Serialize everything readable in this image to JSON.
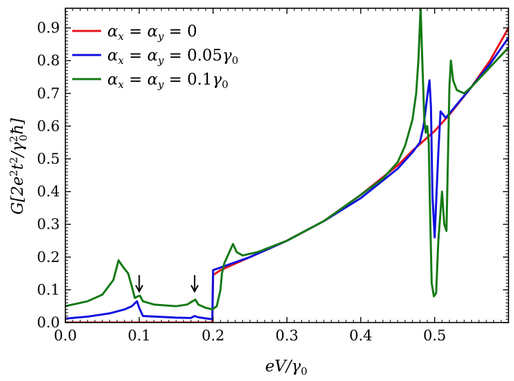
{
  "chart_data": {
    "type": "line",
    "xlabel": "eV/γ₀",
    "ylabel": "G[2e²t²/γ₀²ħ]",
    "xlim": [
      0.0,
      0.6
    ],
    "ylim": [
      0.0,
      0.96
    ],
    "x_ticks": [
      "0.0",
      "0.1",
      "0.2",
      "0.3",
      "0.4",
      "0.5"
    ],
    "x_tick_values": [
      0.0,
      0.1,
      0.2,
      0.3,
      0.4,
      0.5
    ],
    "y_ticks": [
      "0.0",
      "0.1",
      "0.2",
      "0.3",
      "0.4",
      "0.5",
      "0.6",
      "0.7",
      "0.8",
      "0.9"
    ],
    "y_tick_values": [
      0.0,
      0.1,
      0.2,
      0.3,
      0.4,
      0.5,
      0.6,
      0.7,
      0.8,
      0.9
    ],
    "grid": false,
    "legend_position": "top-left",
    "annotations": [
      {
        "type": "down-arrow",
        "x": 0.1,
        "y_from": 0.145,
        "y_to": 0.095
      },
      {
        "type": "down-arrow",
        "x": 0.175,
        "y_from": 0.145,
        "y_to": 0.095
      }
    ],
    "series": [
      {
        "name": "α_x = α_y = 0",
        "color": "#e8121c",
        "x": [
          0.0,
          0.1,
          0.199,
          0.2,
          0.21,
          0.23,
          0.25,
          0.3,
          0.35,
          0.4,
          0.45,
          0.47,
          0.5,
          0.52,
          0.55,
          0.575,
          0.6
        ],
        "y": [
          0.0,
          0.0,
          0.0,
          0.145,
          0.16,
          0.18,
          0.2,
          0.25,
          0.31,
          0.39,
          0.48,
          0.525,
          0.585,
          0.635,
          0.72,
          0.8,
          0.9
        ]
      },
      {
        "name": "α_x = α_y = 0.05γ₀",
        "color": "#1010e0",
        "x": [
          0.0,
          0.03,
          0.06,
          0.08,
          0.09,
          0.097,
          0.1,
          0.105,
          0.15,
          0.17,
          0.175,
          0.18,
          0.199,
          0.2,
          0.21,
          0.25,
          0.3,
          0.35,
          0.4,
          0.45,
          0.47,
          0.48,
          0.485,
          0.49,
          0.493,
          0.495,
          0.497,
          0.5,
          0.505,
          0.508,
          0.515,
          0.55,
          0.575,
          0.6
        ],
        "y": [
          0.012,
          0.018,
          0.028,
          0.04,
          0.05,
          0.065,
          0.045,
          0.02,
          0.015,
          0.014,
          0.02,
          0.016,
          0.01,
          0.16,
          0.168,
          0.2,
          0.25,
          0.31,
          0.38,
          0.47,
          0.52,
          0.55,
          0.6,
          0.69,
          0.74,
          0.66,
          0.39,
          0.26,
          0.52,
          0.645,
          0.625,
          0.72,
          0.79,
          0.87
        ]
      },
      {
        "name": "α_x = α_y = 0.1γ₀",
        "color": "#157a15",
        "x": [
          0.0,
          0.03,
          0.05,
          0.065,
          0.072,
          0.078,
          0.085,
          0.09,
          0.094,
          0.098,
          0.101,
          0.105,
          0.12,
          0.15,
          0.165,
          0.172,
          0.176,
          0.18,
          0.19,
          0.199,
          0.205,
          0.21,
          0.212,
          0.215,
          0.222,
          0.227,
          0.232,
          0.24,
          0.26,
          0.3,
          0.35,
          0.4,
          0.43,
          0.45,
          0.46,
          0.47,
          0.475,
          0.478,
          0.481,
          0.483,
          0.486,
          0.488,
          0.49,
          0.492,
          0.494,
          0.496,
          0.499,
          0.502,
          0.505,
          0.51,
          0.513,
          0.516,
          0.518,
          0.52,
          0.522,
          0.525,
          0.53,
          0.54,
          0.55,
          0.575,
          0.6
        ],
        "y": [
          0.05,
          0.065,
          0.085,
          0.13,
          0.19,
          0.17,
          0.15,
          0.11,
          0.075,
          0.08,
          0.082,
          0.065,
          0.055,
          0.05,
          0.055,
          0.065,
          0.07,
          0.055,
          0.045,
          0.04,
          0.05,
          0.1,
          0.15,
          0.18,
          0.215,
          0.24,
          0.215,
          0.205,
          0.215,
          0.25,
          0.31,
          0.39,
          0.44,
          0.49,
          0.54,
          0.62,
          0.7,
          0.8,
          0.96,
          0.82,
          0.62,
          0.58,
          0.6,
          0.55,
          0.32,
          0.12,
          0.08,
          0.09,
          0.25,
          0.4,
          0.3,
          0.28,
          0.5,
          0.72,
          0.8,
          0.74,
          0.71,
          0.7,
          0.72,
          0.78,
          0.84
        ]
      }
    ]
  }
}
